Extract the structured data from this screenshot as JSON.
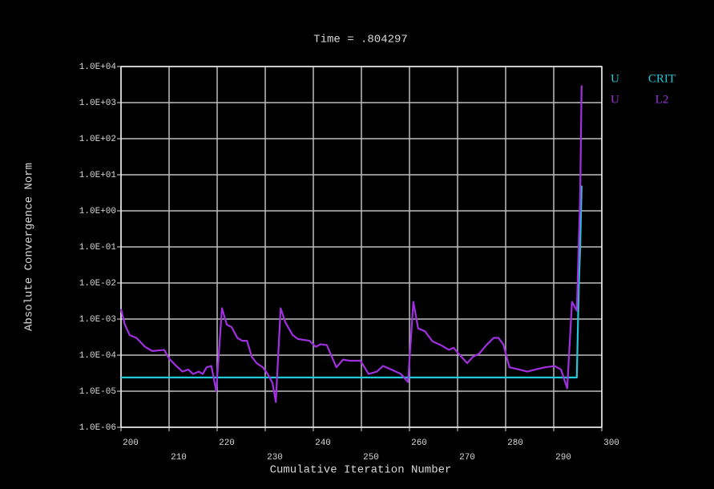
{
  "chart_data": {
    "type": "line",
    "title": "Time = .804297",
    "xlabel": "Cumulative Iteration Number",
    "ylabel": "Absolute Convergence Norm",
    "log_y": true,
    "grid": true,
    "legend": "right",
    "xlim": [
      200,
      300
    ],
    "xticks": [
      200,
      210,
      220,
      230,
      240,
      250,
      260,
      270,
      280,
      290,
      300
    ],
    "ylim": [
      1e-06,
      10000
    ],
    "yticks": [
      {
        "value": 1e-06,
        "label": "1.0E-06"
      },
      {
        "value": 1e-05,
        "label": "1.0E-05"
      },
      {
        "value": 0.0001,
        "label": "1.0E-04"
      },
      {
        "value": 0.001,
        "label": "1.0E-03"
      },
      {
        "value": 0.01,
        "label": "1.0E-02"
      },
      {
        "value": 0.1,
        "label": "1.0E-01"
      },
      {
        "value": 1,
        "label": "1.0E+00"
      },
      {
        "value": 10,
        "label": "1.0E+01"
      },
      {
        "value": 100,
        "label": "1.0E+02"
      },
      {
        "value": 1000,
        "label": "1.0E+03"
      },
      {
        "value": 10000,
        "label": "1.0E+04"
      }
    ],
    "series": [
      {
        "name": "U",
        "component": "CRIT",
        "color": "#22c8d8",
        "x": [
          200,
          294.8,
          295.2,
          295.5,
          295.8
        ],
        "values": [
          2.4e-05,
          2.4e-05,
          0.007,
          0.1,
          5
        ]
      },
      {
        "name": "U",
        "component": "L2",
        "color": "#a030e0",
        "x": [
          200,
          200.8,
          201.8,
          203.2,
          205,
          206.5,
          209,
          210,
          211.5,
          212.8,
          214,
          215,
          216.2,
          217,
          217.8,
          218.8,
          219.8,
          221,
          222,
          223,
          224.2,
          225.2,
          226.2,
          227.2,
          228.2,
          229.5,
          230.5,
          231.5,
          232.2,
          233.2,
          234.2,
          235.7,
          236.8,
          239.2,
          240.5,
          241.5,
          242.8,
          244.8,
          246.2,
          247.5,
          249.8,
          251.5,
          253.2,
          254.5,
          256.2,
          258.2,
          259.7,
          260.8,
          261.8,
          263.2,
          264.8,
          266.5,
          268.2,
          269.2,
          270.2,
          272,
          273.2,
          274.5,
          276,
          277.5,
          278.5,
          279.5,
          280.8,
          282.8,
          284.5,
          286.2,
          288.2,
          290.2,
          291.5,
          292.8,
          293.8,
          294.8,
          295.5,
          295.8
        ],
        "values": [
          0.0019,
          0.0007,
          0.00036,
          0.0003,
          0.00017,
          0.00013,
          0.00014,
          8e-05,
          5e-05,
          3.5e-05,
          4e-05,
          3e-05,
          3.5e-05,
          3e-05,
          4.6e-05,
          5e-05,
          1e-05,
          0.002,
          0.0007,
          0.0006,
          0.0003,
          0.00025,
          0.00025,
          9e-05,
          6e-05,
          4.6e-05,
          3e-05,
          1.7e-05,
          5e-06,
          0.002,
          0.0008,
          0.00036,
          0.00028,
          0.00025,
          0.00017,
          0.0002,
          0.00019,
          4.6e-05,
          7.5e-05,
          7e-05,
          7e-05,
          3e-05,
          3.5e-05,
          5e-05,
          4e-05,
          3e-05,
          1.8e-05,
          0.003,
          0.00055,
          0.00046,
          0.00024,
          0.00019,
          0.00014,
          0.00016,
          0.00011,
          6e-05,
          9e-05,
          0.00011,
          0.00019,
          0.0003,
          0.0003,
          0.0002,
          4.6e-05,
          4e-05,
          3.5e-05,
          4e-05,
          4.6e-05,
          5e-05,
          4e-05,
          1.2e-05,
          0.003,
          0.0017,
          2.5,
          3000
        ]
      }
    ]
  }
}
